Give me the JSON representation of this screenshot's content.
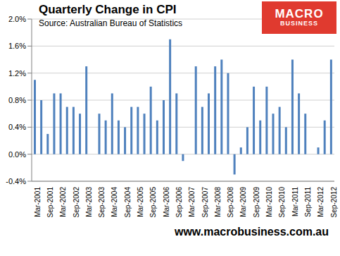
{
  "chart_data": {
    "type": "bar",
    "title": "Quarterly Change in CPI",
    "subtitle": "Source: Australian Bureau of Statistics",
    "annotations": [
      "MACRO BUSINESS",
      "www.macrobusiness.com.au"
    ],
    "categories": [
      "Mar-2001",
      null,
      "Sep-2001",
      null,
      "Mar-2002",
      null,
      "Sep-2002",
      null,
      "Mar-2003",
      null,
      "Sep-2003",
      null,
      "Mar-2004",
      null,
      "Sep-2004",
      null,
      "Mar-2005",
      null,
      "Sep-2005",
      null,
      "Mar-2006",
      null,
      "Sep-2006",
      null,
      "Mar-2007",
      null,
      "Sep-2007",
      null,
      "Mar-2008",
      null,
      "Sep-2008",
      null,
      "Mar-2009",
      null,
      "Sep-2009",
      null,
      "Mar-2010",
      null,
      "Sep-2010",
      null,
      "Mar-2011",
      null,
      "Sep-2011",
      null,
      "Mar-2012",
      null,
      "Sep-2012"
    ],
    "values": [
      1.1,
      0.8,
      0.3,
      0.9,
      0.9,
      0.7,
      0.7,
      0.6,
      1.3,
      0.0,
      0.6,
      0.5,
      0.9,
      0.5,
      0.4,
      0.7,
      0.7,
      0.6,
      1.0,
      0.5,
      0.8,
      1.7,
      0.9,
      -0.1,
      0.0,
      1.3,
      0.7,
      0.9,
      1.3,
      1.4,
      1.2,
      -0.3,
      0.1,
      0.4,
      1.0,
      0.5,
      1.0,
      0.6,
      0.7,
      0.4,
      1.4,
      0.9,
      0.6,
      0.0,
      0.1,
      0.5,
      1.4
    ],
    "color": "#4f81bd",
    "ylim": [
      -0.4,
      2.0
    ],
    "yticks": [
      {
        "value": -0.4,
        "label": "-0.4%"
      },
      {
        "value": 0.0,
        "label": "0.0%"
      },
      {
        "value": 0.4,
        "label": "0.4%"
      },
      {
        "value": 0.8,
        "label": "0.8%"
      },
      {
        "value": 1.2,
        "label": "1.2%"
      },
      {
        "value": 1.6,
        "label": "1.6%"
      },
      {
        "value": 2.0,
        "label": "2.0%"
      }
    ],
    "grid": true
  }
}
